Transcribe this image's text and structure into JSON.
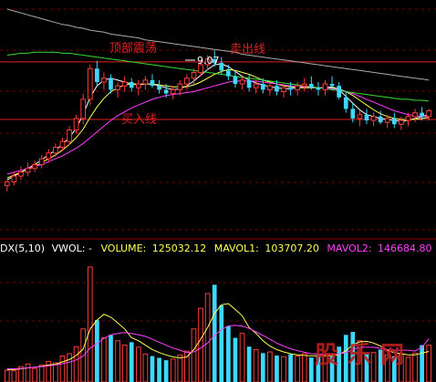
{
  "annotations": {
    "top_oscillation": "顶部震荡",
    "sell_line": "卖出线",
    "buy_line": "买入线",
    "high_value": "9.07"
  },
  "indicator_bar": {
    "prefix": "DX(5,10)",
    "vwol": "VWOL: -",
    "volume_label": "VOLUME:",
    "volume_value": "125032.12",
    "mavol1_label": "MAVOL1:",
    "mavol1_value": "103707.20",
    "mavol2_label": "MAVOL2:",
    "mavol2_value": "146684.80"
  },
  "watermark": "股乐网",
  "colors": {
    "up": "#ff3b3b",
    "down": "#3ed8ff",
    "ma_white": "#ffffff",
    "ma_yellow": "#ffff55",
    "ma_magenta": "#ff40ff",
    "ma_green": "#33dd33",
    "ma_gray": "#aaaaaa",
    "sell_line": "#e02020",
    "buy_line": "#e02020",
    "vol_yellow": "#ffff55",
    "vol_magenta": "#ff40ff",
    "grid": "#7a0000"
  },
  "chart_data": [
    {
      "type": "candlestick",
      "title": "",
      "price_range": [
        7.2,
        9.5
      ],
      "reference_lines": {
        "sell_line": 8.95,
        "buy_line": 8.35
      },
      "annotation_high": 9.07,
      "ohlc": [
        [
          7.66,
          7.72,
          7.6,
          7.7
        ],
        [
          7.7,
          7.8,
          7.66,
          7.76
        ],
        [
          7.76,
          7.86,
          7.72,
          7.8
        ],
        [
          7.8,
          7.9,
          7.76,
          7.84
        ],
        [
          7.84,
          7.92,
          7.8,
          7.88
        ],
        [
          7.88,
          7.98,
          7.84,
          7.94
        ],
        [
          7.94,
          8.04,
          7.9,
          8.0
        ],
        [
          8.0,
          8.1,
          7.96,
          8.06
        ],
        [
          8.06,
          8.16,
          8.02,
          8.12
        ],
        [
          8.12,
          8.28,
          8.08,
          8.24
        ],
        [
          8.24,
          8.4,
          8.2,
          8.36
        ],
        [
          8.36,
          8.62,
          8.3,
          8.56
        ],
        [
          8.56,
          8.92,
          8.5,
          8.88
        ],
        [
          8.88,
          8.96,
          8.7,
          8.74
        ],
        [
          8.74,
          8.84,
          8.66,
          8.78
        ],
        [
          8.78,
          8.82,
          8.62,
          8.66
        ],
        [
          8.66,
          8.74,
          8.58,
          8.7
        ],
        [
          8.7,
          8.8,
          8.64,
          8.74
        ],
        [
          8.74,
          8.78,
          8.64,
          8.68
        ],
        [
          8.68,
          8.76,
          8.6,
          8.72
        ],
        [
          8.72,
          8.8,
          8.66,
          8.76
        ],
        [
          8.76,
          8.82,
          8.68,
          8.7
        ],
        [
          8.7,
          8.76,
          8.62,
          8.66
        ],
        [
          8.66,
          8.72,
          8.58,
          8.62
        ],
        [
          8.62,
          8.7,
          8.56,
          8.66
        ],
        [
          8.66,
          8.76,
          8.6,
          8.72
        ],
        [
          8.72,
          8.82,
          8.66,
          8.78
        ],
        [
          8.78,
          8.88,
          8.72,
          8.84
        ],
        [
          8.84,
          8.96,
          8.8,
          8.92
        ],
        [
          8.92,
          9.02,
          8.86,
          8.98
        ],
        [
          8.98,
          9.07,
          8.9,
          8.94
        ],
        [
          8.94,
          9.0,
          8.82,
          8.86
        ],
        [
          8.86,
          8.92,
          8.76,
          8.8
        ],
        [
          8.8,
          8.86,
          8.68,
          8.72
        ],
        [
          8.72,
          8.8,
          8.66,
          8.76
        ],
        [
          8.76,
          8.82,
          8.64,
          8.68
        ],
        [
          8.68,
          8.76,
          8.62,
          8.72
        ],
        [
          8.72,
          8.78,
          8.62,
          8.66
        ],
        [
          8.66,
          8.74,
          8.6,
          8.7
        ],
        [
          8.7,
          8.76,
          8.6,
          8.64
        ],
        [
          8.64,
          8.72,
          8.58,
          8.68
        ],
        [
          8.68,
          8.74,
          8.6,
          8.66
        ],
        [
          8.66,
          8.74,
          8.6,
          8.7
        ],
        [
          8.7,
          8.78,
          8.64,
          8.72
        ],
        [
          8.72,
          8.8,
          8.66,
          8.68
        ],
        [
          8.68,
          8.74,
          8.6,
          8.66
        ],
        [
          8.66,
          8.76,
          8.6,
          8.72
        ],
        [
          8.72,
          8.8,
          8.66,
          8.7
        ],
        [
          8.7,
          8.74,
          8.56,
          8.58
        ],
        [
          8.58,
          8.64,
          8.42,
          8.46
        ],
        [
          8.46,
          8.52,
          8.32,
          8.36
        ],
        [
          8.36,
          8.44,
          8.28,
          8.4
        ],
        [
          8.4,
          8.46,
          8.3,
          8.34
        ],
        [
          8.34,
          8.42,
          8.28,
          8.38
        ],
        [
          8.38,
          8.44,
          8.3,
          8.32
        ],
        [
          8.32,
          8.4,
          8.26,
          8.36
        ],
        [
          8.36,
          8.42,
          8.26,
          8.3
        ],
        [
          8.3,
          8.38,
          8.24,
          8.34
        ],
        [
          8.34,
          8.42,
          8.28,
          8.38
        ],
        [
          8.38,
          8.46,
          8.32,
          8.42
        ],
        [
          8.42,
          8.48,
          8.34,
          8.38
        ],
        [
          8.38,
          8.46,
          8.34,
          8.44
        ]
      ],
      "moving_averages": [
        {
          "color": "white",
          "values": [
            7.72,
            7.76,
            7.8,
            7.84,
            7.88,
            7.93,
            7.98,
            8.03,
            8.09,
            8.16,
            8.26,
            8.4,
            8.58,
            8.7,
            8.76,
            8.78,
            8.76,
            8.74,
            8.72,
            8.71,
            8.72,
            8.72,
            8.7,
            8.68,
            8.66,
            8.67,
            8.7,
            8.75,
            8.81,
            8.87,
            8.92,
            8.93,
            8.9,
            8.85,
            8.8,
            8.76,
            8.73,
            8.71,
            8.69,
            8.68,
            8.67,
            8.67,
            8.68,
            8.69,
            8.69,
            8.68,
            8.68,
            8.69,
            8.66,
            8.59,
            8.52,
            8.45,
            8.4,
            8.38,
            8.36,
            8.35,
            8.34,
            8.33,
            8.34,
            8.36,
            8.38,
            8.4
          ]
        },
        {
          "color": "yellow",
          "values": [
            7.74,
            7.77,
            7.8,
            7.83,
            7.86,
            7.9,
            7.94,
            7.98,
            8.03,
            8.09,
            8.16,
            8.25,
            8.37,
            8.48,
            8.57,
            8.64,
            8.68,
            8.71,
            8.72,
            8.72,
            8.72,
            8.72,
            8.71,
            8.7,
            8.69,
            8.69,
            8.69,
            8.71,
            8.74,
            8.78,
            8.82,
            8.85,
            8.87,
            8.86,
            8.84,
            8.82,
            8.79,
            8.76,
            8.74,
            8.72,
            8.7,
            8.69,
            8.68,
            8.68,
            8.68,
            8.68,
            8.68,
            8.68,
            8.67,
            8.64,
            8.6,
            8.55,
            8.5,
            8.45,
            8.41,
            8.38,
            8.36,
            8.35,
            8.35,
            8.35,
            8.36,
            8.37
          ]
        },
        {
          "color": "magenta",
          "values": [
            7.78,
            7.8,
            7.82,
            7.84,
            7.86,
            7.88,
            7.91,
            7.94,
            7.97,
            8.01,
            8.05,
            8.1,
            8.16,
            8.22,
            8.28,
            8.34,
            8.39,
            8.43,
            8.47,
            8.5,
            8.53,
            8.56,
            8.58,
            8.6,
            8.61,
            8.62,
            8.63,
            8.64,
            8.66,
            8.68,
            8.7,
            8.72,
            8.74,
            8.75,
            8.75,
            8.75,
            8.75,
            8.74,
            8.73,
            8.72,
            8.71,
            8.7,
            8.7,
            8.69,
            8.69,
            8.68,
            8.68,
            8.67,
            8.66,
            8.64,
            8.62,
            8.59,
            8.56,
            8.53,
            8.5,
            8.47,
            8.44,
            8.42,
            8.4,
            8.39,
            8.38,
            8.38
          ]
        },
        {
          "color": "green",
          "values": [
            9.02,
            9.03,
            9.04,
            9.04,
            9.05,
            9.05,
            9.05,
            9.05,
            9.04,
            9.04,
            9.03,
            9.02,
            9.01,
            9.0,
            8.99,
            8.98,
            8.97,
            8.96,
            8.95,
            8.94,
            8.93,
            8.92,
            8.91,
            8.9,
            8.89,
            8.88,
            8.87,
            8.86,
            8.85,
            8.84,
            8.83,
            8.82,
            8.81,
            8.8,
            8.79,
            8.78,
            8.77,
            8.76,
            8.75,
            8.74,
            8.73,
            8.72,
            8.71,
            8.7,
            8.69,
            8.68,
            8.67,
            8.66,
            8.65,
            8.64,
            8.63,
            8.62,
            8.61,
            8.6,
            8.59,
            8.58,
            8.57,
            8.56,
            8.56,
            8.55,
            8.55,
            8.54
          ]
        },
        {
          "color": "gray",
          "values": [
            9.5,
            9.48,
            9.46,
            9.44,
            9.42,
            9.4,
            9.38,
            9.36,
            9.34,
            9.33,
            9.31,
            9.3,
            9.28,
            9.27,
            9.26,
            9.24,
            9.23,
            9.22,
            9.21,
            9.2,
            9.18,
            9.17,
            9.16,
            9.15,
            9.14,
            9.13,
            9.12,
            9.11,
            9.1,
            9.09,
            9.08,
            9.07,
            9.06,
            9.05,
            9.03,
            9.02,
            9.01,
            9.0,
            8.99,
            8.98,
            8.97,
            8.96,
            8.95,
            8.94,
            8.93,
            8.92,
            8.91,
            8.9,
            8.89,
            8.88,
            8.87,
            8.86,
            8.85,
            8.84,
            8.83,
            8.82,
            8.81,
            8.8,
            8.79,
            8.78,
            8.77,
            8.76
          ]
        }
      ]
    },
    {
      "type": "bar",
      "title": "",
      "value_range": [
        0,
        430000
      ],
      "series": [
        {
          "name": "VOLUME",
          "values": [
            40000,
            38000,
            52000,
            61000,
            46000,
            58000,
            70000,
            65000,
            88000,
            96000,
            120000,
            180000,
            390000,
            210000,
            150000,
            160000,
            140000,
            125000,
            135000,
            118000,
            95000,
            88000,
            82000,
            74000,
            78000,
            92000,
            105000,
            180000,
            250000,
            300000,
            330000,
            260000,
            190000,
            150000,
            165000,
            120000,
            110000,
            98000,
            102000,
            90000,
            86000,
            94000,
            88000,
            96000,
            83000,
            92000,
            88000,
            86000,
            120000,
            160000,
            170000,
            140000,
            95000,
            100000,
            110000,
            92000,
            88000,
            96000,
            84000,
            98000,
            125000,
            125032
          ]
        },
        {
          "name": "MAVOL1",
          "values": [
            42000,
            42000,
            45000,
            48000,
            50000,
            53000,
            58000,
            60000,
            68000,
            76000,
            90000,
            112000,
            180000,
            210000,
            230000,
            220000,
            200000,
            180000,
            150000,
            140000,
            125000,
            110000,
            100000,
            92000,
            85000,
            82000,
            85000,
            110000,
            145000,
            185000,
            233000,
            262000,
            266000,
            246000,
            225000,
            185000,
            165000,
            140000,
            122000,
            110000,
            102000,
            96000,
            92000,
            90000,
            89000,
            89000,
            90000,
            89000,
            93000,
            106000,
            126000,
            136000,
            138000,
            132000,
            122000,
            108000,
            99000,
            96000,
            92000,
            92000,
            98000,
            103707
          ]
        },
        {
          "name": "MAVOL2",
          "values": [
            45000,
            45000,
            46000,
            48000,
            50000,
            52000,
            55000,
            58000,
            62000,
            67000,
            75000,
            88000,
            115000,
            130000,
            148000,
            160000,
            165000,
            168000,
            165000,
            160000,
            155000,
            145000,
            135000,
            125000,
            115000,
            108000,
            100000,
            102000,
            115000,
            132000,
            158000,
            178000,
            190000,
            192000,
            190000,
            182000,
            170000,
            158000,
            145000,
            132000,
            122000,
            113000,
            106000,
            101000,
            96000,
            95000,
            93000,
            93000,
            95000,
            100000,
            110000,
            118000,
            118000,
            118000,
            114000,
            110000,
            108000,
            108000,
            108000,
            105000,
            118000,
            146684.8
          ]
        }
      ]
    }
  ]
}
